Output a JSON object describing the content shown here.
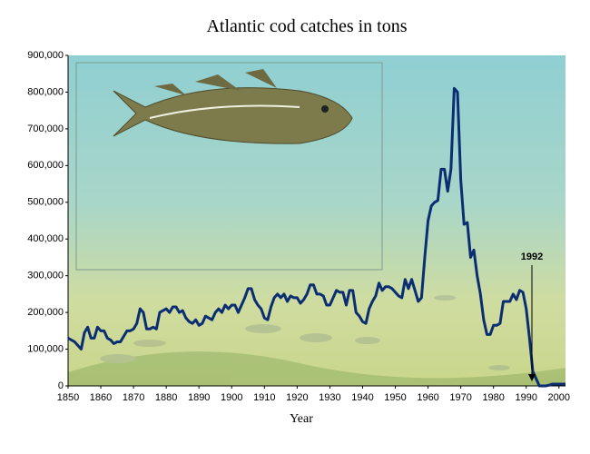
{
  "chart_data": {
    "type": "line",
    "title": "Atlantic cod catches in tons",
    "x_label": "Year",
    "x": [
      1850,
      1851,
      1852,
      1853,
      1854,
      1855,
      1856,
      1857,
      1858,
      1859,
      1860,
      1861,
      1862,
      1863,
      1864,
      1865,
      1866,
      1867,
      1868,
      1869,
      1870,
      1871,
      1872,
      1873,
      1874,
      1875,
      1876,
      1877,
      1878,
      1879,
      1880,
      1881,
      1882,
      1883,
      1884,
      1885,
      1886,
      1887,
      1888,
      1889,
      1890,
      1891,
      1892,
      1893,
      1894,
      1895,
      1896,
      1897,
      1898,
      1899,
      1900,
      1901,
      1902,
      1903,
      1904,
      1905,
      1906,
      1907,
      1908,
      1909,
      1910,
      1911,
      1912,
      1913,
      1914,
      1915,
      1916,
      1917,
      1918,
      1919,
      1920,
      1921,
      1922,
      1923,
      1924,
      1925,
      1926,
      1927,
      1928,
      1929,
      1930,
      1931,
      1932,
      1933,
      1934,
      1935,
      1936,
      1937,
      1938,
      1939,
      1940,
      1941,
      1942,
      1943,
      1944,
      1945,
      1946,
      1947,
      1948,
      1949,
      1950,
      1951,
      1952,
      1953,
      1954,
      1955,
      1956,
      1957,
      1958,
      1959,
      1960,
      1961,
      1962,
      1963,
      1964,
      1965,
      1966,
      1967,
      1968,
      1969,
      1970,
      1971,
      1972,
      1973,
      1974,
      1975,
      1976,
      1977,
      1978,
      1979,
      1980,
      1981,
      1982,
      1983,
      1984,
      1985,
      1986,
      1987,
      1988,
      1989,
      1990,
      1991,
      1992,
      1993,
      1994,
      1995,
      1996,
      1997,
      1998,
      1999,
      2000,
      2001,
      2002
    ],
    "values": [
      130000,
      125000,
      120000,
      110000,
      100000,
      145000,
      160000,
      130000,
      130000,
      160000,
      150000,
      150000,
      130000,
      125000,
      115000,
      120000,
      120000,
      135000,
      150000,
      150000,
      155000,
      170000,
      210000,
      200000,
      155000,
      155000,
      160000,
      155000,
      200000,
      205000,
      210000,
      200000,
      215000,
      215000,
      200000,
      205000,
      185000,
      175000,
      170000,
      180000,
      165000,
      170000,
      190000,
      185000,
      180000,
      200000,
      210000,
      200000,
      220000,
      210000,
      220000,
      220000,
      200000,
      220000,
      240000,
      265000,
      265000,
      235000,
      220000,
      210000,
      185000,
      180000,
      215000,
      240000,
      250000,
      240000,
      250000,
      230000,
      245000,
      240000,
      240000,
      225000,
      235000,
      250000,
      275000,
      275000,
      250000,
      250000,
      245000,
      220000,
      220000,
      240000,
      260000,
      255000,
      255000,
      220000,
      260000,
      260000,
      200000,
      190000,
      175000,
      170000,
      210000,
      230000,
      245000,
      280000,
      260000,
      270000,
      270000,
      265000,
      255000,
      245000,
      240000,
      290000,
      265000,
      290000,
      260000,
      230000,
      240000,
      350000,
      450000,
      490000,
      500000,
      505000,
      590000,
      590000,
      530000,
      590000,
      810000,
      800000,
      560000,
      440000,
      445000,
      350000,
      370000,
      300000,
      250000,
      180000,
      140000,
      140000,
      165000,
      165000,
      170000,
      230000,
      230000,
      230000,
      250000,
      235000,
      260000,
      255000,
      210000,
      130000,
      40000,
      20000,
      0,
      0,
      0,
      2000,
      5000,
      5000,
      5000,
      5000,
      5000
    ],
    "color": "#0b2d72",
    "xlim": [
      1850,
      2002
    ],
    "xticks": [
      1850,
      1860,
      1870,
      1880,
      1890,
      1900,
      1910,
      1920,
      1930,
      1940,
      1950,
      1960,
      1970,
      1980,
      1990,
      2000
    ],
    "ylim": [
      0,
      900000
    ],
    "yticks": [
      0,
      {
        "value": 100000,
        "label": "100,000"
      },
      {
        "value": 200000,
        "label": "200,000"
      },
      {
        "value": 300000,
        "label": "300,000"
      },
      {
        "value": 400000,
        "label": "400,000"
      },
      {
        "value": 500000,
        "label": "500,000"
      },
      {
        "value": 600000,
        "label": "600,000"
      },
      {
        "value": 700000,
        "label": "700,000"
      },
      {
        "value": 800000,
        "label": "800,000"
      },
      {
        "value": 900000,
        "label": "900,000"
      }
    ],
    "annotation": "1992"
  }
}
